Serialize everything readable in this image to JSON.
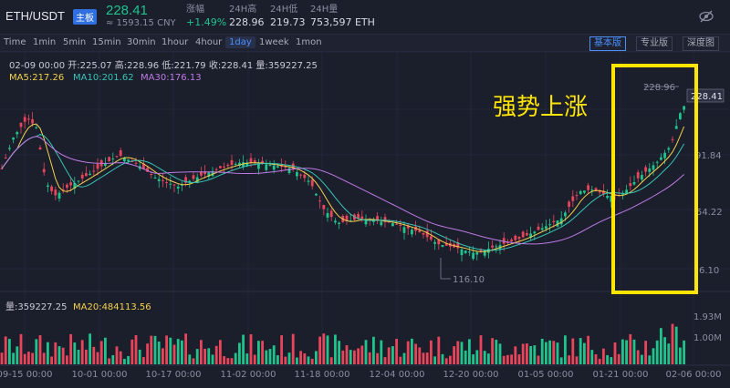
{
  "header": {
    "pair": "ETH/USDT",
    "board": "主板",
    "price": "228.41",
    "cny": "≈ 1593.15 CNY",
    "stats": [
      {
        "label": "涨幅",
        "value": "+1.49%",
        "up": true
      },
      {
        "label": "24H高",
        "value": "228.96",
        "up": false
      },
      {
        "label": "24H低",
        "value": "219.73",
        "up": false
      },
      {
        "label": "24H量",
        "value": "753,597 ETH",
        "up": false
      }
    ]
  },
  "toolbar": {
    "intervals": [
      "Time",
      "1min",
      "5min",
      "15min",
      "30min",
      "1hour",
      "4hour",
      "1day",
      "1week",
      "1mon"
    ],
    "active_interval": "1day",
    "views": [
      "基本版",
      "专业版",
      "深度图"
    ],
    "active_view": "基本版"
  },
  "chart": {
    "ohlc_line": "02-09 00:00  开:225.07  高:228.96  低:221.79  收:228.41  量:359227.25",
    "ma5": "MA5:217.26",
    "ma10": "MA10:201.62",
    "ma30": "MA30:176.13",
    "ma_colors": {
      "ma5": "#f5d24b",
      "ma10": "#34c6b6",
      "ma30": "#c07ae8"
    },
    "up_color": "#1fc48d",
    "down_color": "#e8455a",
    "price_ticks": [
      "91.84",
      "54.22",
      "6.10"
    ],
    "high_label": "228.96",
    "low_label": "116.10",
    "current_label": "228.41",
    "annotation": "强势上涨",
    "annotation_color": "#ffe500"
  },
  "volume": {
    "info": "量:359227.25",
    "ma20": "MA20:484113.56",
    "ticks": [
      "1.93M",
      "1.00M"
    ]
  },
  "xaxis": [
    "09-15 00:00",
    "10-01 00:00",
    "10-17 00:00",
    "11-02 00:00",
    "11-18 00:00",
    "12-04 00:00",
    "12-20 00:00",
    "01-05 00:00",
    "01-21 00:00",
    "02-06 00:00"
  ]
}
